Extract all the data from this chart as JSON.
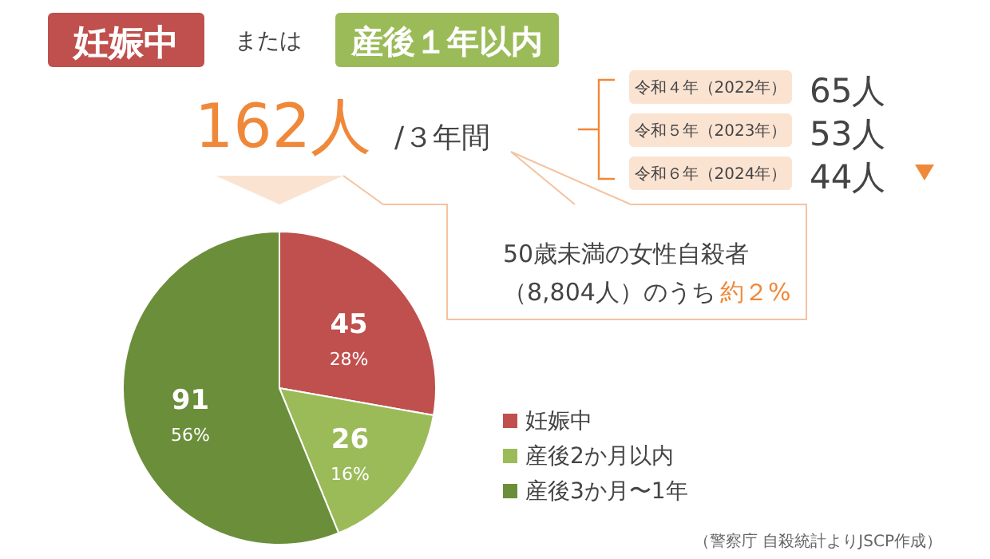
{
  "chart_data": {
    "type": "pie",
    "categories": [
      "妊娠中",
      "産後2か月以内",
      "産後3か月〜1年"
    ],
    "values": [
      45,
      26,
      91
    ],
    "colors": [
      "#c0504d",
      "#9bbb59",
      "#6b8e3a"
    ],
    "data_labels": true,
    "legend": "right",
    "annotations": [
      "妊娠中",
      "または",
      "産後１年以内",
      "162人",
      "/３年間",
      "令和４年（2022年）",
      "令和５年（2023年）",
      "令和６年（2024年）",
      "65人",
      "53人",
      "44人",
      "50歳未満の女性自殺者",
      "（8,804人）のうち",
      "約２%",
      "（警察庁 自殺統計よりJSCP作成）",
      {
        "text": "28%",
        "x": "妊娠中"
      },
      {
        "text": "16%",
        "x": "産後2か月以内"
      },
      {
        "text": "56%",
        "x": "産後3か月〜1年"
      }
    ]
  }
}
